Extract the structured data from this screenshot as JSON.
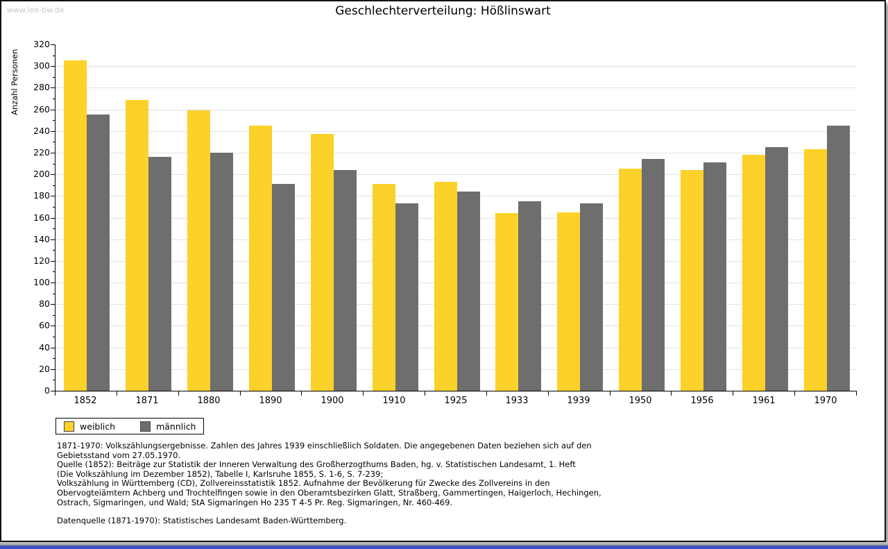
{
  "page": {
    "watermark": "www.leo-bw.de",
    "title": "Geschlechterverteilung: Hößlinswart"
  },
  "chart_data": {
    "type": "bar",
    "title": "Geschlechterverteilung: Hößlinswart",
    "xlabel": "",
    "ylabel": "Anzahl Personen",
    "ylim": [
      0,
      320
    ],
    "ytick_step": 20,
    "minor_tick_step": 10,
    "grid": true,
    "legend_position": "bottom-left",
    "categories": [
      "1852",
      "1871",
      "1880",
      "1890",
      "1900",
      "1910",
      "1925",
      "1933",
      "1939",
      "1950",
      "1956",
      "1961",
      "1970"
    ],
    "series": [
      {
        "name": "weiblich",
        "color": "#fcd12a",
        "values": [
          305,
          269,
          259,
          245,
          237,
          191,
          193,
          164,
          165,
          205,
          204,
          218,
          223
        ]
      },
      {
        "name": "männlich",
        "color": "#6e6e6e",
        "values": [
          255,
          216,
          220,
          191,
          204,
          173,
          184,
          175,
          173,
          214,
          211,
          225,
          245
        ]
      }
    ]
  },
  "footer": {
    "lines": [
      "1871-1970: Volkszählungsergebnisse. Zahlen des Jahres 1939 einschließlich Soldaten. Die angegebenen Daten beziehen sich auf den",
      "Gebietsstand vom 27.05.1970.",
      "Quelle (1852): Beiträge zur Statistik der Inneren Verwaltung des Großherzogthums Baden, hg. v. Statistischen Landesamt, 1. Heft",
      "(Die Volkszählung im Dezember 1852), Tabelle I, Karlsruhe 1855, S. 1-6, S. 7-239;",
      "Volkszählung in Württemberg (CD), Zollvereinsstatistik 1852. Aufnahme der Bevölkerung für Zwecke des Zollvereins in den",
      "Obervogteiämtern Achberg und Trochtelfingen sowie in den Oberamtsbezirken Glatt, Straßberg, Gammertingen, Haigerloch, Hechingen,",
      "Ostrach, Sigmaringen, und Wald; StA Sigmaringen Ho 235 T 4-5 Pr. Reg. Sigmaringen, Nr. 460-469."
    ],
    "datasource": "Datenquelle (1871-1970): Statistisches Landesamt Baden-Württemberg."
  },
  "colors": {
    "frame_blue": "#3f51c4",
    "gridline": "#e2e2e2"
  }
}
